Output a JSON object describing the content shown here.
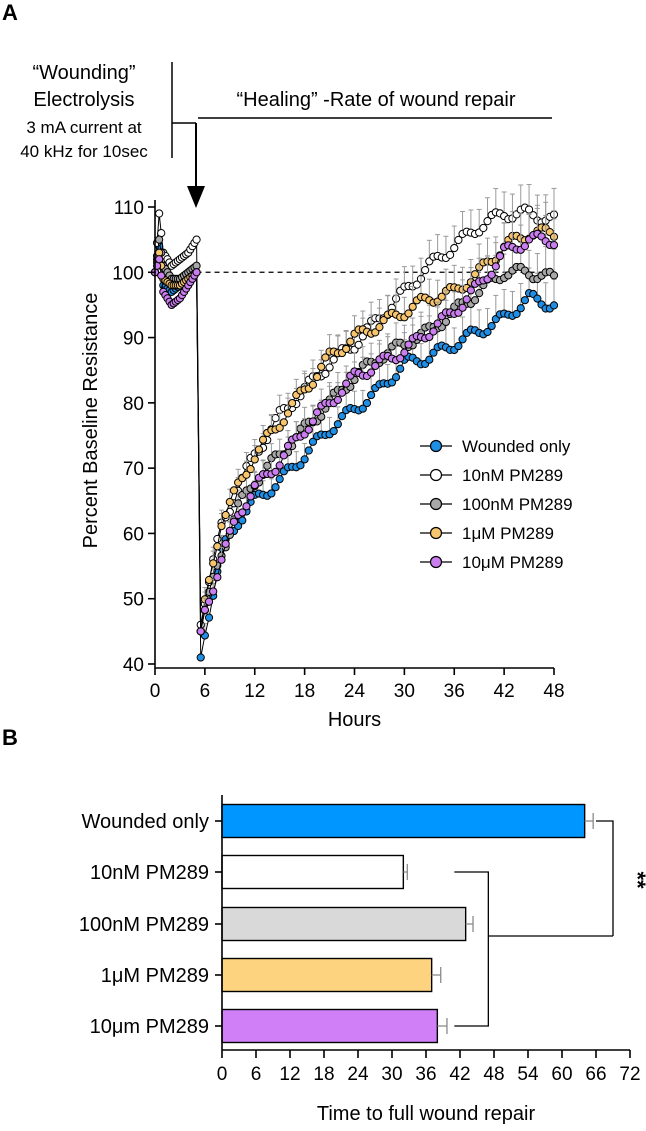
{
  "panel_a": {
    "letter": "A",
    "annotations": {
      "wounding_title": "“Wounding”",
      "electrolysis": "Electrolysis",
      "current": "3 mA current at",
      "frequency": "40 kHz for 10sec",
      "healing": "“Healing” -Rate of wound repair"
    }
  },
  "panel_b": {
    "letter": "B"
  },
  "colors": {
    "wounded_only": "#1f8fe6",
    "pm289_10nM": "#ffffff",
    "pm289_100nM": "#a8a8a8",
    "pm289_1uM": "#f7c56e",
    "pm289_10uM": "#cb7ef0",
    "bar_100nM": "#d9d9d9",
    "bar_1uM": "#fdd37f",
    "bar_10um": "#d07ff7",
    "bar_wounded": "#0096ff",
    "error": "#8a8a8a"
  },
  "chart_data": [
    {
      "type": "line",
      "xlabel": "Hours",
      "ylabel": "Percent Baseline Resistance",
      "xlim": [
        0,
        48
      ],
      "ylim": [
        40,
        110
      ],
      "xticks": [
        "0",
        "6",
        "12",
        "18",
        "24",
        "30",
        "36",
        "42",
        "48"
      ],
      "yticks": [
        "40",
        "50",
        "60",
        "70",
        "80",
        "90",
        "100",
        "110"
      ],
      "reference_line": 100,
      "wound_time": 5,
      "legend_position": "lower-right",
      "series": [
        {
          "name": "Wounded only",
          "key": "wounded_only",
          "x": [
            0,
            0.5,
            1,
            2,
            3,
            4,
            5,
            5.5,
            6,
            8,
            10,
            12,
            15,
            18,
            21,
            24,
            27,
            30,
            33,
            36,
            39,
            42,
            45,
            48
          ],
          "y": [
            100,
            104,
            98,
            97,
            98,
            99,
            100,
            41,
            45,
            57,
            62,
            65,
            68,
            72,
            76,
            79,
            82,
            86,
            87,
            89,
            91,
            93,
            96,
            95
          ]
        },
        {
          "name": "10nM PM289",
          "key": "pm289_10nM",
          "x": [
            0,
            0.5,
            1,
            2,
            3,
            4,
            5,
            5.5,
            6,
            8,
            10,
            12,
            15,
            18,
            21,
            24,
            27,
            30,
            33,
            36,
            39,
            42,
            45,
            48
          ],
          "y": [
            100,
            109,
            103,
            101,
            102,
            103,
            105,
            46,
            50,
            61,
            67,
            72,
            78,
            82,
            86,
            89,
            93,
            97,
            101,
            104,
            107,
            109,
            109,
            108
          ]
        },
        {
          "name": "100nM PM289",
          "key": "pm289_100nM",
          "x": [
            0,
            0.5,
            1,
            2,
            3,
            4,
            5,
            5.5,
            6,
            8,
            10,
            12,
            15,
            18,
            21,
            24,
            27,
            30,
            33,
            36,
            39,
            42,
            45,
            48
          ],
          "y": [
            100,
            105,
            101,
            99,
            99,
            100,
            101,
            45,
            48,
            57,
            64,
            68,
            72,
            76,
            80,
            84,
            87,
            89,
            91,
            94,
            97,
            100,
            100,
            99
          ]
        },
        {
          "name": "1μM PM289",
          "key": "pm289_1uM",
          "x": [
            0,
            0.5,
            1,
            2,
            3,
            4,
            5,
            5.5,
            6,
            8,
            10,
            12,
            15,
            18,
            21,
            24,
            27,
            30,
            33,
            36,
            39,
            42,
            45,
            48
          ],
          "y": [
            100,
            103,
            99,
            98,
            98,
            99,
            100,
            45,
            49,
            62,
            67,
            72,
            77,
            82,
            87,
            90,
            92,
            94,
            96,
            97,
            100,
            104,
            106,
            106
          ]
        },
        {
          "name": "10μM PM289",
          "key": "pm289_10uM",
          "x": [
            0,
            0.5,
            1,
            2,
            3,
            4,
            5,
            5.5,
            6,
            8,
            10,
            12,
            15,
            18,
            21,
            24,
            27,
            30,
            33,
            36,
            39,
            42,
            45,
            48
          ],
          "y": [
            100,
            102,
            97,
            95,
            96,
            98,
            100,
            45,
            48,
            56,
            63,
            67,
            71,
            76,
            80,
            84,
            86,
            88,
            91,
            94,
            98,
            103,
            105,
            105
          ]
        }
      ]
    },
    {
      "type": "bar",
      "orientation": "horizontal",
      "xlabel": "Time to full wound repair",
      "xlim": [
        0,
        72
      ],
      "xticks": [
        "0",
        "6",
        "12",
        "18",
        "24",
        "30",
        "36",
        "42",
        "48",
        "54",
        "60",
        "66",
        "72"
      ],
      "categories": [
        "Wounded only",
        "10nM PM289",
        "100nM PM289",
        "1μM PM289",
        "10μm PM289"
      ],
      "color_keys": [
        "bar_wounded",
        "pm289_10nM",
        "bar_100nM",
        "bar_1uM",
        "bar_10um"
      ],
      "values": [
        64,
        32,
        43,
        37,
        38
      ],
      "errors": [
        1.5,
        0.7,
        1.3,
        1.6,
        1.7
      ],
      "significance": "**"
    }
  ]
}
